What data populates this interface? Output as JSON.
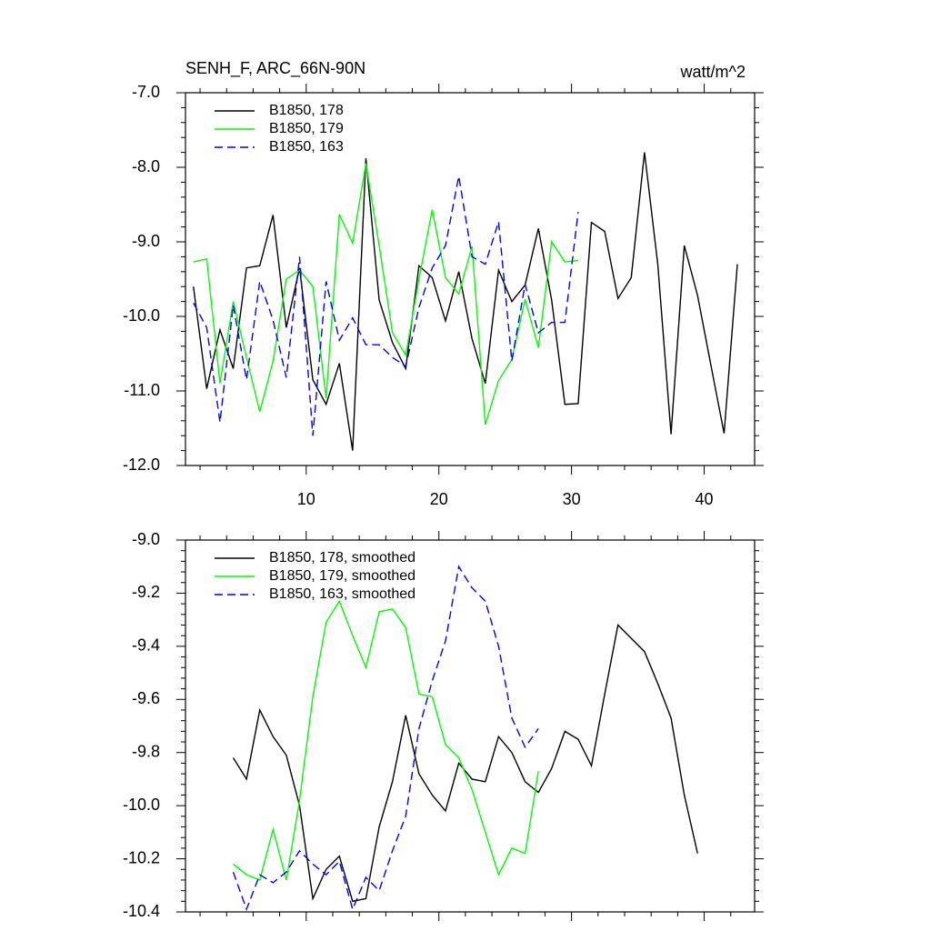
{
  "chart_data": [
    {
      "type": "line",
      "title": "SENH_F, ARC_66N-90N",
      "units": "watt/m^2",
      "x": [
        1.5,
        2.5,
        3.5,
        4.5,
        5.5,
        6.5,
        7.5,
        8.5,
        9.5,
        10.5,
        11.5,
        12.5,
        13.5,
        14.5,
        15.5,
        16.5,
        17.5,
        18.5,
        19.5,
        20.5,
        21.5,
        22.5,
        23.5,
        24.5,
        25.5,
        26.5,
        27.5,
        28.5,
        29.5,
        30.5,
        31.5,
        32.5,
        33.5,
        34.5,
        35.5,
        36.5,
        37.5,
        38.5,
        39.5,
        40.5,
        41.5,
        42.5
      ],
      "xlim": [
        0.9,
        43.8
      ],
      "xticks": [
        10,
        20,
        30,
        40
      ],
      "ylim": [
        -12,
        -7
      ],
      "yticks": [
        {
          "value": -7,
          "label": "-7.0"
        },
        {
          "value": -8,
          "label": "-8.0"
        },
        {
          "value": -9,
          "label": "-9.0"
        },
        {
          "value": -10,
          "label": "-10.0"
        },
        {
          "value": -11,
          "label": "-11.0"
        },
        {
          "value": -12,
          "label": "-12.0"
        }
      ],
      "series": [
        {
          "name": "B1850, 178",
          "color": "#000000",
          "line_style": "solid",
          "values": [
            -9.6,
            -10.97,
            -10.18,
            -10.7,
            -9.35,
            -9.32,
            -8.64,
            -10.15,
            -9.35,
            -10.85,
            -11.18,
            -10.63,
            -11.8,
            -7.88,
            -9.78,
            -10.35,
            -10.7,
            -9.32,
            -9.48,
            -10.06,
            -9.4,
            -10.3,
            -10.9,
            -9.38,
            -9.8,
            -9.58,
            -8.82,
            -9.78,
            -11.18,
            -11.17,
            -8.74,
            -8.86,
            -9.76,
            -9.48,
            -7.8,
            -9.3,
            -11.58,
            -9.05,
            -9.72,
            -10.65,
            -11.57,
            -9.3
          ]
        },
        {
          "name": "B1850, 179",
          "color": "#00ff00",
          "line_style": "solid",
          "values": [
            -9.27,
            -9.23,
            -10.9,
            -9.8,
            -10.55,
            -11.28,
            -10.6,
            -9.5,
            -9.38,
            -9.6,
            -11.1,
            -8.63,
            -9.02,
            -7.95,
            -9.05,
            -10.22,
            -10.52,
            -9.5,
            -8.57,
            -9.48,
            -9.7,
            -9.06,
            -11.45,
            -10.86,
            -10.58,
            -9.77,
            -10.42,
            -9.0,
            -9.27,
            -9.25,
            null,
            null,
            null,
            null,
            null,
            null,
            null,
            null,
            null,
            null,
            null,
            null
          ]
        },
        {
          "name": "B1850, 163",
          "color": "#0000ff",
          "line_style": "dashed",
          "values": [
            -9.82,
            -10.15,
            -11.42,
            -9.85,
            -10.85,
            -9.53,
            -10.05,
            -10.82,
            -9.2,
            -11.6,
            -9.53,
            -10.32,
            -10.02,
            -10.38,
            -10.38,
            -10.55,
            -10.67,
            -9.88,
            -9.35,
            -9.05,
            -8.12,
            -9.2,
            -9.3,
            -8.73,
            -10.6,
            -9.57,
            -10.22,
            -10.08,
            -10.08,
            -8.6,
            null,
            null,
            null,
            null,
            null,
            null,
            null,
            null,
            null,
            null,
            null,
            null
          ]
        }
      ]
    },
    {
      "type": "line",
      "x": [
        4.5,
        5.5,
        6.5,
        7.5,
        8.5,
        9.5,
        10.5,
        11.5,
        12.5,
        13.5,
        14.5,
        15.5,
        16.5,
        17.5,
        18.5,
        19.5,
        20.5,
        21.5,
        22.5,
        23.5,
        24.5,
        25.5,
        26.5,
        27.5,
        28.5,
        29.5,
        30.5,
        31.5,
        32.5,
        33.5,
        34.5,
        35.5,
        36.5,
        37.5,
        38.5,
        39.5
      ],
      "xlim": [
        0.9,
        43.8
      ],
      "xticks": [
        10,
        20,
        30,
        40
      ],
      "ylim": [
        -10.4,
        -9.0
      ],
      "yticks": [
        {
          "value": -9.0,
          "label": "-9.0"
        },
        -9.2,
        -9.4,
        -9.6,
        -9.8,
        {
          "value": -10.0,
          "label": "-10.0"
        },
        -10.2,
        -10.4
      ],
      "series": [
        {
          "name": "B1850, 178, smoothed",
          "color": "#000000",
          "line_style": "solid",
          "values": [
            -9.82,
            -9.9,
            -9.64,
            -9.74,
            -9.81,
            -10.0,
            -10.35,
            -10.24,
            -10.19,
            -10.36,
            -10.35,
            -10.08,
            -9.91,
            -9.66,
            -9.88,
            -9.96,
            -10.02,
            -9.84,
            -9.9,
            -9.91,
            -9.74,
            -9.8,
            -9.91,
            -9.95,
            -9.86,
            -9.72,
            -9.75,
            -9.85,
            -9.58,
            -9.32,
            -9.37,
            -9.42,
            -9.54,
            -9.67,
            -9.96,
            -10.18
          ]
        },
        {
          "name": "B1850, 179, smoothed",
          "color": "#00ff00",
          "line_style": "solid",
          "values": [
            -10.22,
            -10.26,
            -10.28,
            -10.09,
            -10.28,
            -9.98,
            -9.59,
            -9.31,
            -9.23,
            -9.36,
            -9.48,
            -9.27,
            -9.26,
            -9.33,
            -9.58,
            -9.59,
            -9.77,
            -9.82,
            -9.94,
            -10.1,
            -10.26,
            -10.16,
            -10.18,
            -9.87,
            null,
            null,
            null,
            null,
            null,
            null,
            null,
            null,
            null,
            null,
            null,
            null
          ]
        },
        {
          "name": "B1850, 163, smoothed",
          "color": "#0000ff",
          "line_style": "dashed",
          "values": [
            -10.25,
            -10.39,
            -10.26,
            -10.29,
            -10.25,
            -10.17,
            -10.22,
            -10.26,
            -10.21,
            -10.39,
            -10.27,
            -10.32,
            -10.17,
            -10.04,
            -9.71,
            -9.53,
            -9.38,
            -9.1,
            -9.18,
            -9.23,
            -9.4,
            -9.67,
            -9.78,
            -9.71,
            null,
            null,
            null,
            null,
            null,
            null,
            null,
            null,
            null,
            null,
            null,
            null
          ]
        }
      ]
    }
  ]
}
